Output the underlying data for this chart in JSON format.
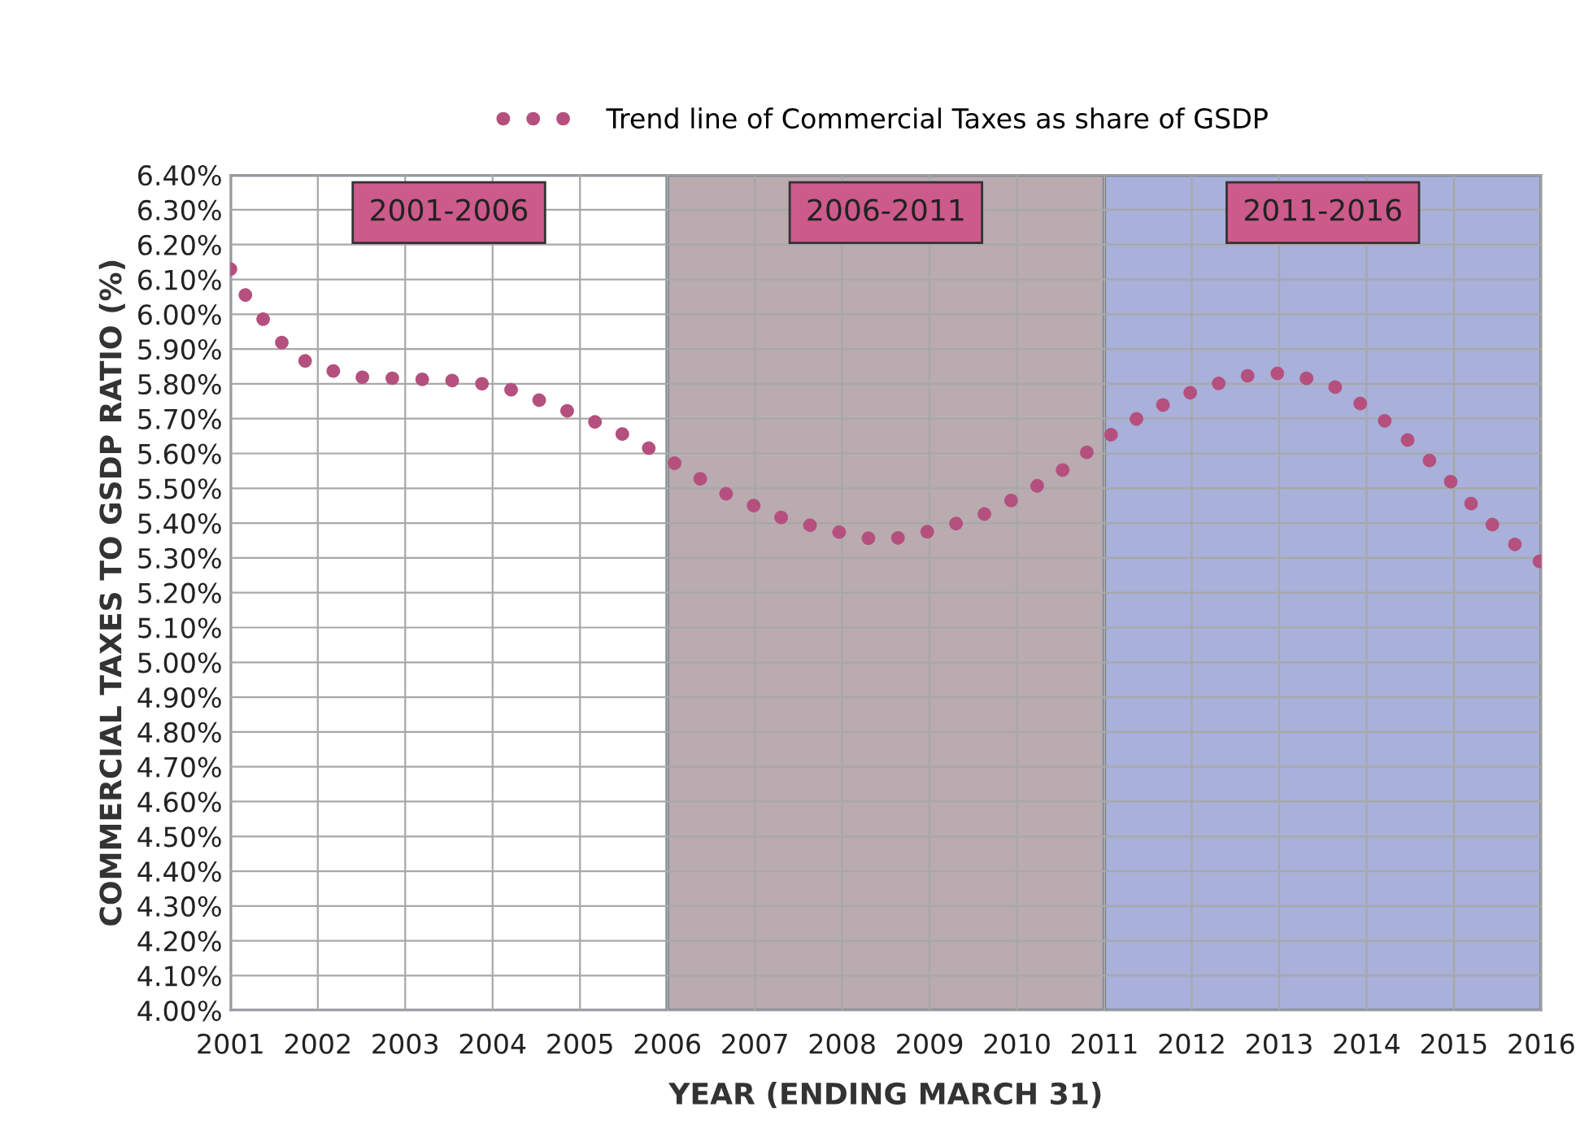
{
  "chart_data": {
    "type": "line",
    "xlabel": "YEAR (ENDING MARCH 31)",
    "ylabel": "COMMERCIAL TAXES TO GSDP RATIO (%)",
    "series": [
      {
        "name": "Trend line of Commercial Taxes as share of GSDP",
        "color": "#b5507e",
        "x": [
          2001.0,
          2001.13,
          2001.3,
          2001.47,
          2001.65,
          2001.86,
          2002.14,
          2002.4,
          2002.98,
          2003.52,
          2004.08,
          2004.36,
          2004.88,
          2005.38,
          2005.9,
          2006.62,
          2007.36,
          2008.2,
          2008.5,
          2009.06,
          2009.58,
          2010.09,
          2010.57,
          2011.02,
          2011.5,
          2012.03,
          2012.55,
          2012.83,
          2013.13,
          2013.65,
          2014.13,
          2014.56,
          2014.96,
          2015.33,
          2015.76,
          2015.98
        ],
        "values": [
          6.13,
          6.07,
          6.01,
          5.955,
          5.9,
          5.865,
          5.84,
          5.82,
          5.815,
          5.81,
          5.795,
          5.77,
          5.72,
          5.67,
          5.6,
          5.49,
          5.41,
          5.36,
          5.35,
          5.38,
          5.42,
          5.485,
          5.56,
          5.645,
          5.72,
          5.78,
          5.82,
          5.83,
          5.83,
          5.79,
          5.71,
          5.62,
          5.52,
          5.42,
          5.325,
          5.29
        ]
      }
    ],
    "line_style": "dotted",
    "xlim": [
      2001,
      2016
    ],
    "xticks": [
      2001,
      2002,
      2003,
      2004,
      2005,
      2006,
      2007,
      2008,
      2009,
      2010,
      2011,
      2012,
      2013,
      2014,
      2015,
      2016
    ],
    "ylim": [
      4.0,
      6.4
    ],
    "yticks": [
      {
        "value": 4.0,
        "label": "4.00%"
      },
      {
        "value": 4.1,
        "label": "4.10%"
      },
      {
        "value": 4.2,
        "label": "4.20%"
      },
      {
        "value": 4.3,
        "label": "4.30%"
      },
      {
        "value": 4.4,
        "label": "4.40%"
      },
      {
        "value": 4.5,
        "label": "4.50%"
      },
      {
        "value": 4.6,
        "label": "4.60%"
      },
      {
        "value": 4.7,
        "label": "4.70%"
      },
      {
        "value": 4.8,
        "label": "4.80%"
      },
      {
        "value": 4.9,
        "label": "4.90%"
      },
      {
        "value": 5.0,
        "label": "5.00%"
      },
      {
        "value": 5.1,
        "label": "5.10%"
      },
      {
        "value": 5.2,
        "label": "5.20%"
      },
      {
        "value": 5.3,
        "label": "5.30%"
      },
      {
        "value": 5.4,
        "label": "5.40%"
      },
      {
        "value": 5.5,
        "label": "5.50%"
      },
      {
        "value": 5.6,
        "label": "5.60%"
      },
      {
        "value": 5.7,
        "label": "5.70%"
      },
      {
        "value": 5.8,
        "label": "5.80%"
      },
      {
        "value": 5.9,
        "label": "5.90%"
      },
      {
        "value": 6.0,
        "label": "6.00%"
      },
      {
        "value": 6.1,
        "label": "6.10%"
      },
      {
        "value": 6.2,
        "label": "6.20%"
      },
      {
        "value": 6.3,
        "label": "6.30%"
      },
      {
        "value": 6.4,
        "label": "6.40%"
      }
    ],
    "bands": [
      {
        "axis": "x",
        "from": 2001,
        "to": 2006,
        "label": "2001-2006",
        "color": "#ffffff"
      },
      {
        "axis": "x",
        "from": 2006,
        "to": 2011,
        "label": "2006-2011",
        "color": "#b9abb0"
      },
      {
        "axis": "x",
        "from": 2011,
        "to": 2016,
        "label": "2011-2016",
        "color": "#a9b0d9"
      }
    ],
    "grid": true,
    "legend": "top"
  }
}
